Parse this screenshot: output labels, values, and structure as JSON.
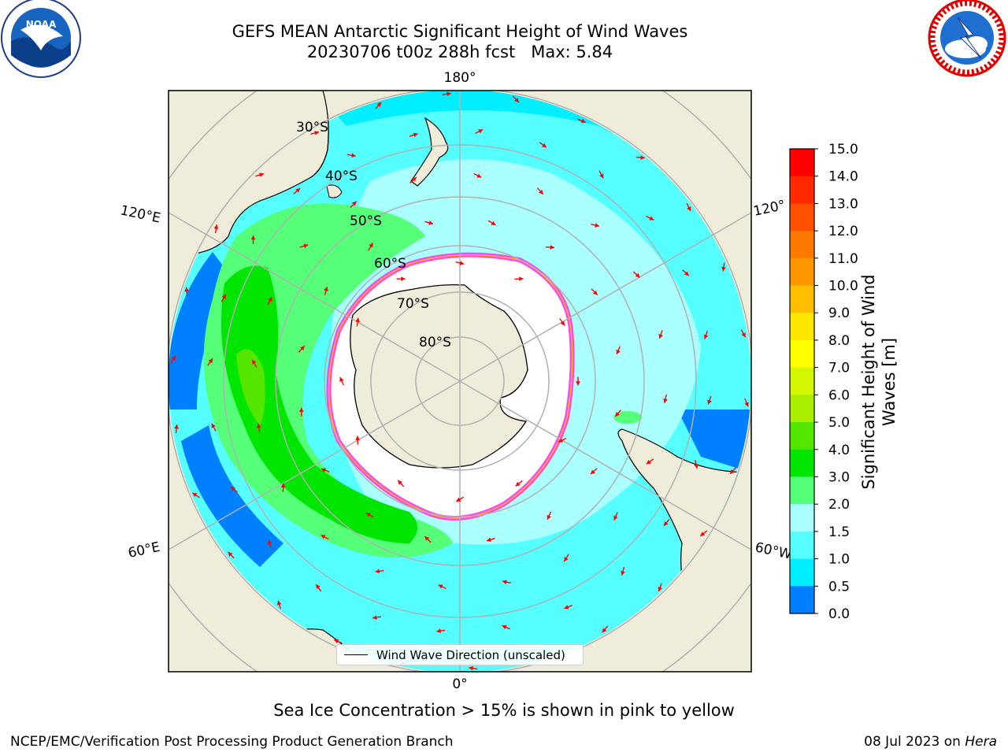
{
  "title": {
    "line1": "GEFS MEAN Antarctic Significant Height of Wind Waves",
    "line2": "20230706 t00z 288h fcst   Max: 5.84"
  },
  "logos": {
    "left": {
      "icon": "noaa-logo",
      "text": "NOAA"
    },
    "right": {
      "icon": "nws-logo"
    }
  },
  "map": {
    "projection": "south-polar-stereographic",
    "longitude_labels": [
      "180°",
      "120°E",
      "120°",
      "60°E",
      "60°W",
      "0°"
    ],
    "latitude_labels": [
      "30°S",
      "40°S",
      "50°S",
      "60°S",
      "70°S",
      "80°S"
    ],
    "colors": {
      "land": "#efedda",
      "ice": "#ffffff",
      "ice_edge": "#ff40ff",
      "arrow": "#ff0000",
      "grid": "#b0b0b0"
    }
  },
  "legend": {
    "label": "Wind Wave Direction (unscaled)"
  },
  "colorbar": {
    "label": "Significant Height of Wind Waves [m]",
    "ticks": [
      "15.0",
      "14.0",
      "13.0",
      "12.0",
      "11.0",
      "10.0",
      "9.0",
      "8.0",
      "7.0",
      "6.0",
      "5.0",
      "4.0",
      "3.0",
      "2.0",
      "1.5",
      "1.0",
      "0.5",
      "0.0"
    ],
    "colors": [
      "#ff0000",
      "#ff2800",
      "#ff5000",
      "#ff7800",
      "#ff9600",
      "#ffbe00",
      "#ffe600",
      "#ffff00",
      "#d2f700",
      "#aaee00",
      "#55e600",
      "#00e600",
      "#55ff77",
      "#aaffff",
      "#55ffff",
      "#00eeff",
      "#0080ff",
      "#0000ff"
    ]
  },
  "subtitle": "Sea Ice Concentration > 15% is shown in pink to yellow",
  "footer": {
    "left": "NCEP/EMC/Verification Post Processing Product Generation Branch",
    "right_date": "08 Jul 2023 on ",
    "right_host": "Hera"
  }
}
